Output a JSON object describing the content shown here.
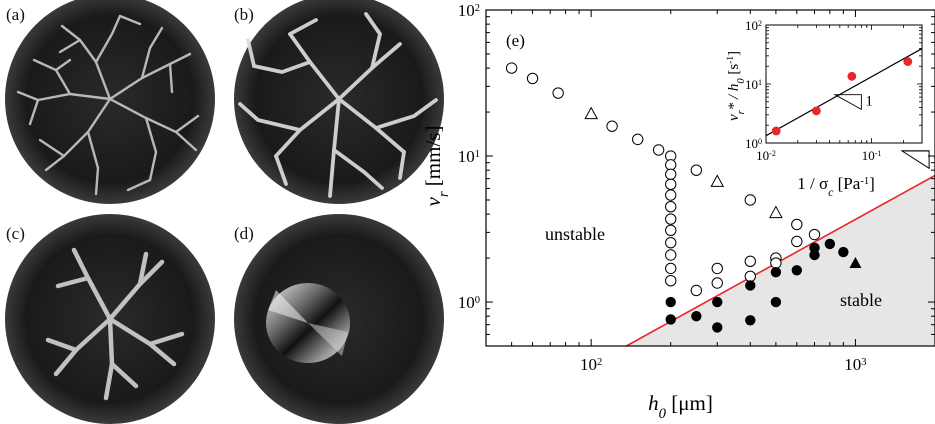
{
  "photos": [
    {
      "label": "(a)"
    },
    {
      "label": "(b)"
    },
    {
      "label": "(c)"
    },
    {
      "label": "(d)"
    }
  ],
  "chart_data": [
    {
      "type": "scatter",
      "panel_label": "(e)",
      "xscale": "log",
      "yscale": "log",
      "xlim": [
        40,
        2000
      ],
      "ylim": [
        0.5,
        100
      ],
      "xticks": [
        {
          "value": 100,
          "base": "10",
          "exp": "2"
        },
        {
          "value": 1000,
          "base": "10",
          "exp": "3"
        }
      ],
      "yticks": [
        {
          "value": 1,
          "base": "10",
          "exp": "0"
        },
        {
          "value": 10,
          "base": "10",
          "exp": "1"
        },
        {
          "value": 100,
          "base": "10",
          "exp": "2"
        }
      ],
      "xlabel": {
        "symbol": "h",
        "sub": "0",
        "unit": "[μm]"
      },
      "ylabel": {
        "symbol": "v",
        "sub": "r",
        "unit": "[mm/s]"
      },
      "region_labels": {
        "unstable": "unstable",
        "stable": "stable"
      },
      "slope_label": "1",
      "boundary_line": {
        "color": "#e8262b",
        "coeff": 0.00368,
        "exponent": 1
      },
      "stable_fill": "#e6e6e6",
      "series": [
        {
          "marker": "open-circle",
          "points": [
            [
              50,
              40
            ],
            [
              60,
              34
            ],
            [
              75,
              27
            ],
            [
              120,
              16
            ],
            [
              150,
              13
            ],
            [
              180,
              11
            ],
            [
              200,
              10
            ],
            [
              200,
              8.7
            ],
            [
              200,
              7.5
            ],
            [
              200,
              6.4
            ],
            [
              200,
              5.4
            ],
            [
              200,
              4.5
            ],
            [
              200,
              3.7
            ],
            [
              200,
              3.1
            ],
            [
              200,
              2.55
            ],
            [
              200,
              2.1
            ],
            [
              200,
              1.7
            ],
            [
              200,
              1.4
            ],
            [
              250,
              8
            ],
            [
              250,
              1.2
            ],
            [
              300,
              1.7
            ],
            [
              300,
              1.35
            ],
            [
              400,
              5
            ],
            [
              400,
              1.9
            ],
            [
              400,
              1.5
            ],
            [
              500,
              2
            ],
            [
              500,
              1.85
            ],
            [
              600,
              3.4
            ],
            [
              600,
              2.6
            ],
            [
              700,
              2.9
            ]
          ]
        },
        {
          "marker": "filled-circle",
          "points": [
            [
              200,
              1
            ],
            [
              200,
              0.76
            ],
            [
              250,
              0.8
            ],
            [
              300,
              1
            ],
            [
              300,
              0.67
            ],
            [
              400,
              1.3
            ],
            [
              400,
              0.75
            ],
            [
              500,
              1.6
            ],
            [
              500,
              1
            ],
            [
              600,
              1.65
            ],
            [
              700,
              2.1
            ],
            [
              700,
              2.35
            ],
            [
              800,
              2.5
            ],
            [
              900,
              2.2
            ]
          ]
        },
        {
          "marker": "open-triangle",
          "points": [
            [
              100,
              19.5
            ],
            [
              300,
              6.7
            ],
            [
              500,
              4.1
            ]
          ]
        },
        {
          "marker": "filled-triangle",
          "points": [
            [
              1000,
              1.85
            ]
          ]
        }
      ]
    },
    {
      "type": "scatter",
      "inset": true,
      "xscale": "log",
      "yscale": "log",
      "xlim": [
        0.01,
        0.3
      ],
      "ylim": [
        1,
        100
      ],
      "xticks": [
        {
          "value": 0.01,
          "base": "10",
          "exp": "-2"
        },
        {
          "value": 0.1,
          "base": "10",
          "exp": "-1"
        }
      ],
      "yticks": [
        {
          "value": 1,
          "base": "10",
          "exp": "0"
        },
        {
          "value": 10,
          "base": "10",
          "exp": "1"
        },
        {
          "value": 100,
          "base": "10",
          "exp": "2"
        }
      ],
      "xlabel": {
        "prefix": "1 / σ",
        "sub": "c",
        "unit": "[Pa",
        "unit_exp": "-1",
        "unit_close": "]"
      },
      "ylabel": {
        "symbol": "v",
        "sub": "r",
        "rest": "* / h",
        "sub2": "0",
        "unit": "[s",
        "unit_exp": "-1",
        "unit_close": "]"
      },
      "slope_label": "1",
      "fit_line": {
        "color": "#000000",
        "coeff": 133,
        "exponent": 1
      },
      "points": [
        [
          0.0125,
          1.6
        ],
        [
          0.03,
          3.5
        ],
        [
          0.065,
          13.5
        ],
        [
          0.22,
          24
        ]
      ],
      "point_color": "#e8262b"
    }
  ]
}
